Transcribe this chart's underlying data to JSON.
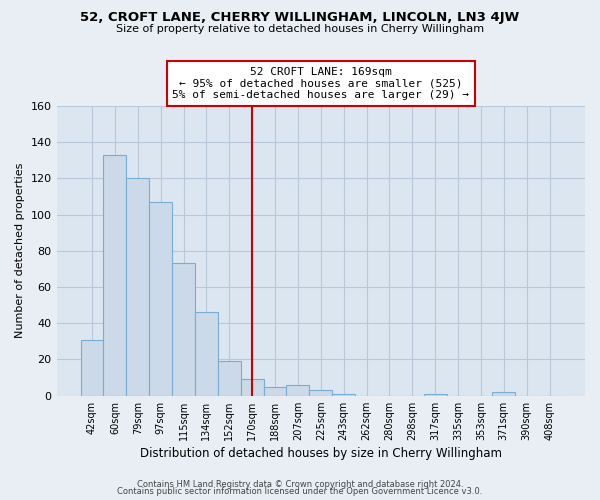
{
  "title": "52, CROFT LANE, CHERRY WILLINGHAM, LINCOLN, LN3 4JW",
  "subtitle": "Size of property relative to detached houses in Cherry Willingham",
  "xlabel": "Distribution of detached houses by size in Cherry Willingham",
  "ylabel": "Number of detached properties",
  "bar_labels": [
    "42sqm",
    "60sqm",
    "79sqm",
    "97sqm",
    "115sqm",
    "134sqm",
    "152sqm",
    "170sqm",
    "188sqm",
    "207sqm",
    "225sqm",
    "243sqm",
    "262sqm",
    "280sqm",
    "298sqm",
    "317sqm",
    "335sqm",
    "353sqm",
    "371sqm",
    "390sqm",
    "408sqm"
  ],
  "bar_values": [
    31,
    133,
    120,
    107,
    73,
    46,
    19,
    9,
    5,
    6,
    3,
    1,
    0,
    0,
    0,
    1,
    0,
    0,
    2,
    0,
    0
  ],
  "bar_color": "#ccd9e8",
  "bar_edge_color": "#7aadd4",
  "vline_x": 7,
  "vline_color": "#cc0000",
  "annotation_text": "52 CROFT LANE: 169sqm\n← 95% of detached houses are smaller (525)\n5% of semi-detached houses are larger (29) →",
  "annotation_box_color": "#ffffff",
  "annotation_box_edge": "#cc0000",
  "ylim": [
    0,
    160
  ],
  "yticks": [
    0,
    20,
    40,
    60,
    80,
    100,
    120,
    140,
    160
  ],
  "footer_line1": "Contains HM Land Registry data © Crown copyright and database right 2024.",
  "footer_line2": "Contains public sector information licensed under the Open Government Licence v3.0.",
  "bg_color": "#e8eef4",
  "plot_bg_color": "#dce6f0",
  "grid_color": "#b8c8d8"
}
